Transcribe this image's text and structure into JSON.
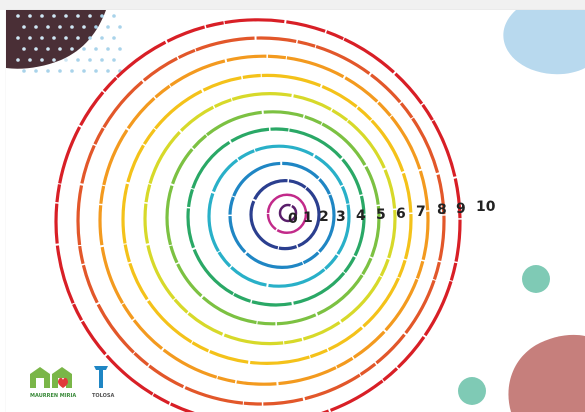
{
  "spiral_numbers": [
    "0",
    "1",
    "2",
    "3",
    "4",
    "5",
    "6",
    "7",
    "8",
    "9",
    "10"
  ],
  "ring_colors": [
    "#5a1f6b",
    "#c22a8a",
    "#2b3f8f",
    "#1f86c4",
    "#29b0c8",
    "#2aa866",
    "#7cc142",
    "#d7d92a",
    "#f4c21a",
    "#f39a1f",
    "#e2572a",
    "#d81f26"
  ],
  "logos": {
    "left_text": "MAURREN MIRIA",
    "right_text": "TOLOSA"
  },
  "decor": {
    "blob_topleft": "#4a2f36",
    "dots": "#a9d3ea",
    "blob_topright": "#b8d9ee",
    "dot_teal": "#7fcab5",
    "blob_bottomright": "#c67f7c"
  }
}
